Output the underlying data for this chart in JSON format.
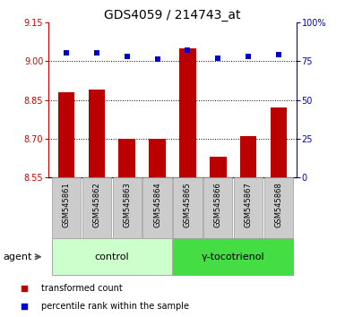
{
  "title": "GDS4059 / 214743_at",
  "samples": [
    "GSM545861",
    "GSM545862",
    "GSM545863",
    "GSM545864",
    "GSM545865",
    "GSM545866",
    "GSM545867",
    "GSM545868"
  ],
  "red_values": [
    8.88,
    8.89,
    8.7,
    8.7,
    9.05,
    8.63,
    8.71,
    8.82
  ],
  "blue_values": [
    80,
    80,
    78,
    76,
    82,
    77,
    78,
    79
  ],
  "ylim_left": [
    8.55,
    9.15
  ],
  "ylim_right": [
    0,
    100
  ],
  "yticks_left": [
    8.55,
    8.7,
    8.85,
    9.0,
    9.15
  ],
  "yticks_right": [
    0,
    25,
    50,
    75,
    100
  ],
  "ytick_labels_right": [
    "0",
    "25",
    "50",
    "75",
    "100%"
  ],
  "hlines": [
    9.0,
    8.85,
    8.7
  ],
  "group1_label": "control",
  "group2_label": "γ-tocotrienol",
  "group1_indices": [
    0,
    1,
    2,
    3
  ],
  "group2_indices": [
    4,
    5,
    6,
    7
  ],
  "agent_label": "agent",
  "legend_red": "transformed count",
  "legend_blue": "percentile rank within the sample",
  "bar_color": "#bb0000",
  "dot_color": "#0000cc",
  "group1_bg": "#ccffcc",
  "group2_bg": "#44dd44",
  "sample_bg": "#cccccc",
  "bar_width": 0.55,
  "title_fontsize": 10,
  "tick_fontsize": 7,
  "sample_fontsize": 6,
  "group_fontsize": 8,
  "legend_fontsize": 7
}
